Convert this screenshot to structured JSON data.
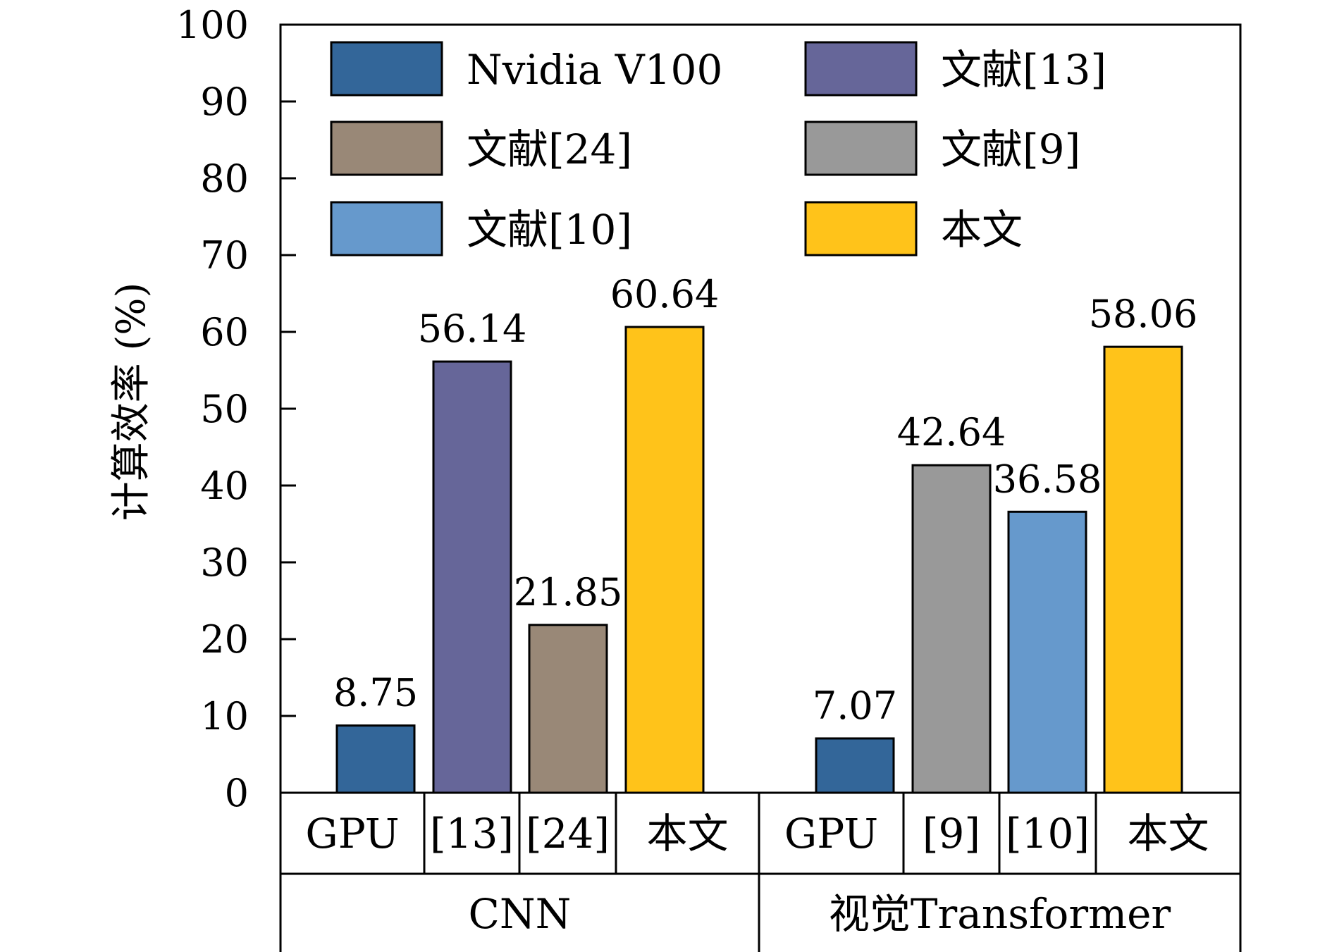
{
  "chart_data": {
    "type": "bar",
    "ylabel": "计算效率 (%)",
    "ylim": [
      0,
      100
    ],
    "yticks": [
      0,
      10,
      20,
      30,
      40,
      50,
      60,
      70,
      80,
      90,
      100
    ],
    "grid": false,
    "legend_position": "top",
    "legend": [
      {
        "name": "Nvidia V100",
        "color": "#336699"
      },
      {
        "name": "文献[13]",
        "color": "#666699"
      },
      {
        "name": "文献[24]",
        "color": "#998877"
      },
      {
        "name": "文献[9]",
        "color": "#999999"
      },
      {
        "name": "文献[10]",
        "color": "#6699cc"
      },
      {
        "name": "本文",
        "color": "#ffc31a"
      }
    ],
    "groups": [
      {
        "name": "CNN",
        "bars": [
          {
            "label": "GPU",
            "value": 8.75,
            "display": "8.75",
            "color": "#336699"
          },
          {
            "label": "[13]",
            "value": 56.14,
            "display": "56.14",
            "color": "#666699"
          },
          {
            "label": "[24]",
            "value": 21.85,
            "display": "21.85",
            "color": "#998877"
          },
          {
            "label": "本文",
            "value": 60.64,
            "display": "60.64",
            "color": "#ffc31a"
          }
        ]
      },
      {
        "name": "视觉Transformer",
        "bars": [
          {
            "label": "GPU",
            "value": 7.07,
            "display": "7.07",
            "color": "#336699"
          },
          {
            "label": "[9]",
            "value": 42.64,
            "display": "42.64",
            "color": "#999999"
          },
          {
            "label": "[10]",
            "value": 36.58,
            "display": "36.58",
            "color": "#6699cc"
          },
          {
            "label": "本文",
            "value": 58.06,
            "display": "58.06",
            "color": "#ffc31a"
          }
        ]
      }
    ]
  }
}
